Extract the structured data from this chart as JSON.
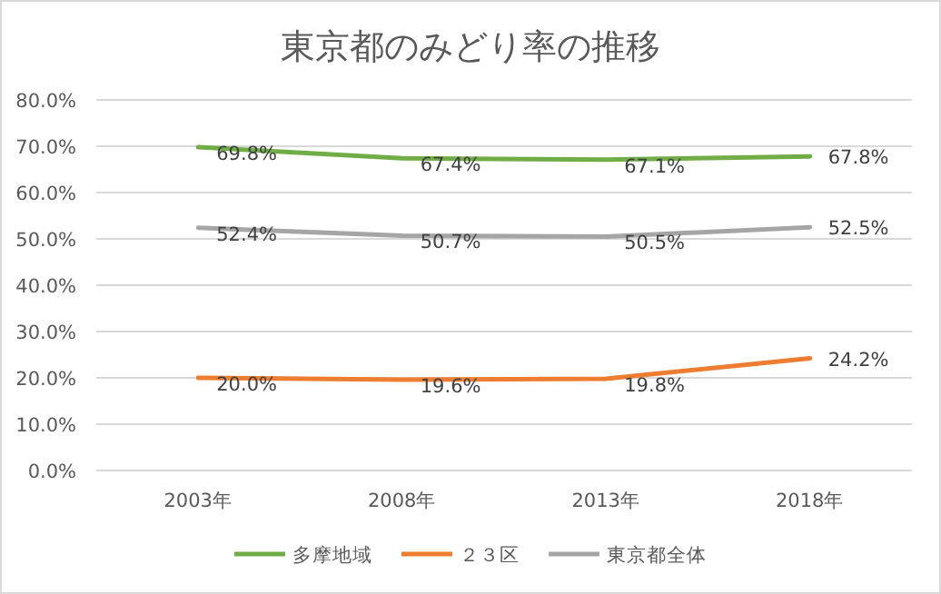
{
  "chart_data": {
    "type": "line",
    "title": "東京都のみどり率の推移",
    "categories": [
      "2003年",
      "2008年",
      "2013年",
      "2018年"
    ],
    "ylim": [
      0,
      80
    ],
    "yticks": [
      {
        "value": 0,
        "label": "0.0%"
      },
      {
        "value": 10,
        "label": "10.0%"
      },
      {
        "value": 20,
        "label": "20.0%"
      },
      {
        "value": 30,
        "label": "30.0%"
      },
      {
        "value": 40,
        "label": "40.0%"
      },
      {
        "value": 50,
        "label": "50.0%"
      },
      {
        "value": 60,
        "label": "60.0%"
      },
      {
        "value": 70,
        "label": "70.0%"
      },
      {
        "value": 80,
        "label": "80.0%"
      }
    ],
    "grid": "y",
    "legend": "bottom",
    "marker": "none",
    "line_style": "solid",
    "series": [
      {
        "name": "多摩地域",
        "color": "#70ad47",
        "values": [
          69.8,
          67.4,
          67.1,
          67.8
        ],
        "value_labels": [
          "69.8%",
          "67.4%",
          "67.1%",
          "67.8%"
        ]
      },
      {
        "name": "２３区",
        "color": "#ed7d31",
        "values": [
          20.0,
          19.6,
          19.8,
          24.2
        ],
        "value_labels": [
          "20.0%",
          "19.6%",
          "19.8%",
          "24.2%"
        ]
      },
      {
        "name": "東京都全体",
        "color": "#a5a5a5",
        "values": [
          52.4,
          50.7,
          50.5,
          52.5
        ],
        "value_labels": [
          "52.4%",
          "50.7%",
          "50.5%",
          "52.5%"
        ]
      }
    ]
  }
}
